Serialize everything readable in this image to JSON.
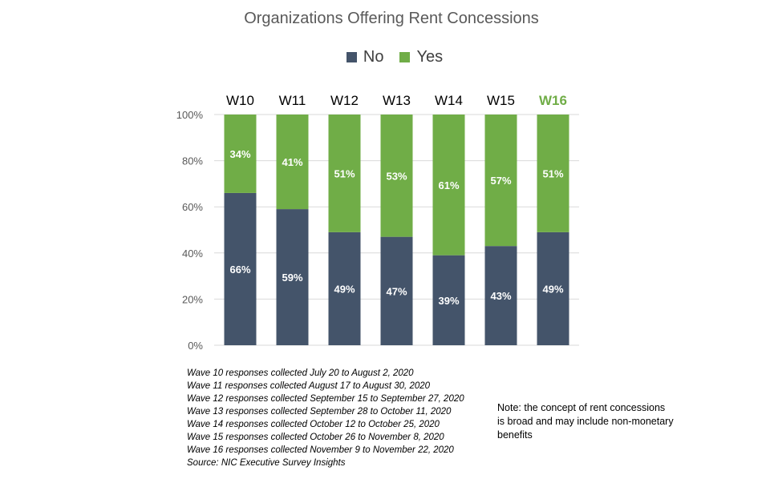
{
  "chart_data": {
    "type": "bar",
    "stacked": true,
    "title": "Organizations Offering Rent Concessions",
    "categories": [
      "W10",
      "W11",
      "W12",
      "W13",
      "W14",
      "W15",
      "W16"
    ],
    "series": [
      {
        "name": "No",
        "color": "#44546a",
        "values": [
          66,
          59,
          49,
          47,
          39,
          43,
          49
        ]
      },
      {
        "name": "Yes",
        "color": "#70ad47",
        "values": [
          34,
          41,
          51,
          53,
          61,
          57,
          51
        ]
      }
    ],
    "data_labels": {
      "No": [
        "66%",
        "59%",
        "49%",
        "47%",
        "39%",
        "43%",
        "49%"
      ],
      "Yes": [
        "34%",
        "41%",
        "51%",
        "53%",
        "61%",
        "57%",
        "51%"
      ]
    },
    "highlight_category": "W16",
    "highlight_color": "#70ad47",
    "ylim": [
      0,
      100
    ],
    "yticks": [
      "0%",
      "20%",
      "40%",
      "60%",
      "80%",
      "100%"
    ],
    "ytick_values": [
      0,
      20,
      40,
      60,
      80,
      100
    ],
    "grid": true,
    "legend": "top"
  },
  "notes": [
    "Wave 10 responses collected July 20 to August 2, 2020",
    "Wave 11 responses collected August 17 to August 30, 2020",
    "Wave 12 responses collected September 15 to September 27, 2020",
    "Wave 13 responses collected September 28 to October 11, 2020",
    "Wave 14 responses collected October 12 to October 25, 2020",
    "Wave 15 responses collected October 26 to November 8, 2020",
    "Wave 16 responses collected November 9 to November 22, 2020",
    "Source: NIC Executive Survey Insights"
  ],
  "side_note": "Note: the concept of rent concessions is broad and may include non-monetary benefits"
}
